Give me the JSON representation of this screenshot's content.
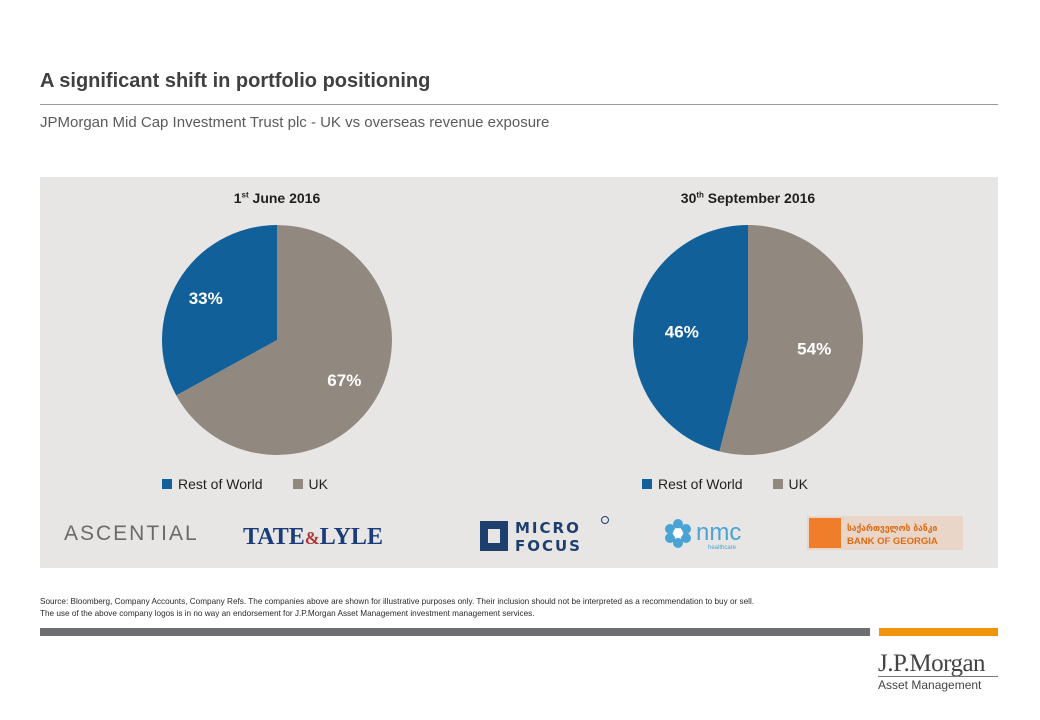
{
  "title": "A significant shift in portfolio positioning",
  "subtitle": "JPMorgan Mid Cap Investment Trust plc  - UK vs overseas revenue exposure",
  "colors": {
    "rest_of_world": "#12609a",
    "uk": "#918980",
    "panel_bg": "#e8e6e4",
    "accent": "#f0950b"
  },
  "chart_data": [
    {
      "type": "pie",
      "title_day": "1",
      "title_suffix": "st",
      "title_rest": " June 2016",
      "slices": [
        {
          "label": "Rest of World",
          "value": 33,
          "display": "33%"
        },
        {
          "label": "UK",
          "value": 67,
          "display": "67%"
        }
      ],
      "legend": [
        "Rest of World",
        "UK"
      ]
    },
    {
      "type": "pie",
      "title_day": "30",
      "title_suffix": "th",
      "title_rest": " September 2016",
      "slices": [
        {
          "label": "Rest of World",
          "value": 46,
          "display": "46%"
        },
        {
          "label": "UK",
          "value": 54,
          "display": "54%"
        }
      ],
      "legend": [
        "Rest of World",
        "UK"
      ]
    }
  ],
  "logos": {
    "ascential": "ASCENTIAL",
    "tate_lyle_left": "TATE",
    "tate_lyle_amp": "&",
    "tate_lyle_right": "LYLE",
    "micro": "MICRO",
    "focus": "FOCUS",
    "nmc": "nmc",
    "nmc_sub": "healthcare",
    "bog_georgian": "საქართველოს ბანკი",
    "bog_english": "BANK OF GEORGIA"
  },
  "source_line1": "Source: Bloomberg, Company Accounts, Company Refs. The companies above are shown for illustrative purposes only. Their inclusion should not be interpreted as a recommendation to buy or sell.",
  "source_line2": "The use of the above company logos is in no way an endorsement for J.P.Morgan Asset Management investment management services.",
  "brand": {
    "name": "J.P.Morgan",
    "sub": "Asset Management"
  }
}
